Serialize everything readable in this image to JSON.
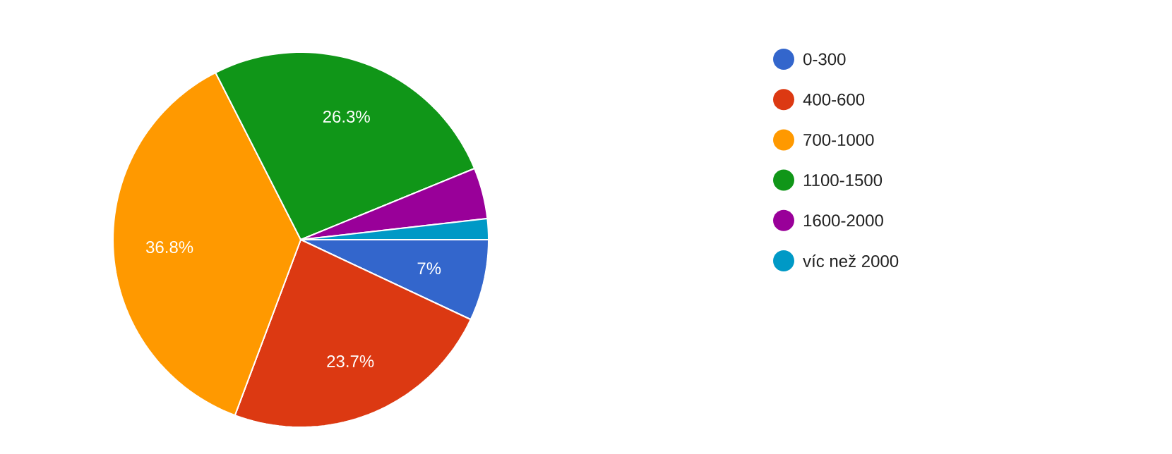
{
  "chart_data": {
    "type": "pie",
    "categories": [
      "0-300",
      "400-600",
      "700-1000",
      "1100-1500",
      "1600-2000",
      "víc než 2000"
    ],
    "values": [
      7,
      23.7,
      36.8,
      26.3,
      4.4,
      1.8
    ],
    "colors": [
      "#3366cc",
      "#dc3912",
      "#ff9900",
      "#109618",
      "#990099",
      "#0099c6"
    ],
    "value_labels": [
      "7%",
      "23.7%",
      "36.8%",
      "26.3%",
      null,
      null
    ],
    "legend": "right"
  }
}
